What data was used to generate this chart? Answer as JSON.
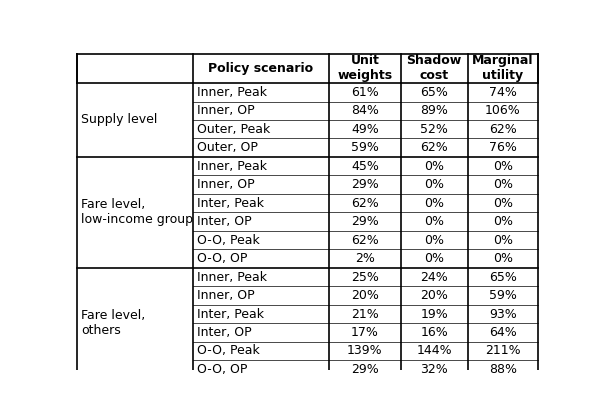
{
  "col_headers": [
    "Policy scenario",
    "Unit\nweights",
    "Shadow\ncost",
    "Marginal\nutility"
  ],
  "row_groups": [
    {
      "group_label": "Supply level",
      "rows": [
        [
          "Inner, Peak",
          "61%",
          "65%",
          "74%"
        ],
        [
          "Inner, OP",
          "84%",
          "89%",
          "106%"
        ],
        [
          "Outer, Peak",
          "49%",
          "52%",
          "62%"
        ],
        [
          "Outer, OP",
          "59%",
          "62%",
          "76%"
        ]
      ]
    },
    {
      "group_label": "Fare level,\nlow-income group",
      "rows": [
        [
          "Inner, Peak",
          "45%",
          "0%",
          "0%"
        ],
        [
          "Inner, OP",
          "29%",
          "0%",
          "0%"
        ],
        [
          "Inter, Peak",
          "62%",
          "0%",
          "0%"
        ],
        [
          "Inter, OP",
          "29%",
          "0%",
          "0%"
        ],
        [
          "O-O, Peak",
          "62%",
          "0%",
          "0%"
        ],
        [
          "O-O, OP",
          "2%",
          "0%",
          "0%"
        ]
      ]
    },
    {
      "group_label": "Fare level,\nothers",
      "rows": [
        [
          "Inner, Peak",
          "25%",
          "24%",
          "65%"
        ],
        [
          "Inner, OP",
          "20%",
          "20%",
          "59%"
        ],
        [
          "Inter, Peak",
          "21%",
          "19%",
          "93%"
        ],
        [
          "Inter, OP",
          "17%",
          "16%",
          "64%"
        ],
        [
          "O-O, Peak",
          "139%",
          "144%",
          "211%"
        ],
        [
          "O-O, OP",
          "29%",
          "32%",
          "88%"
        ]
      ]
    }
  ],
  "background_color": "#ffffff",
  "header_font_size": 9,
  "cell_font_size": 9,
  "group_label_font_size": 9,
  "line_color": "#000000",
  "thick_lw": 1.2,
  "thin_lw": 0.5
}
